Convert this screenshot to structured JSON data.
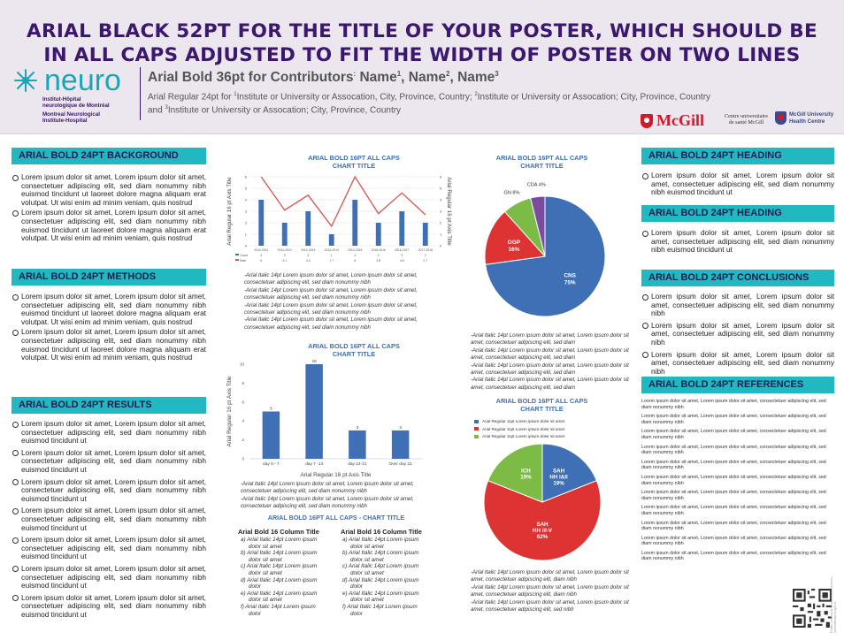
{
  "header": {
    "title_line1": "ARIAL BLACK 52PT FOR THE TITLE OF YOUR POSTER, WHICH SHOULD BE",
    "title_line2": "IN ALL CAPS ADJUSTED TO FIT THE WIDTH OF POSTER ON TWO LINES",
    "contributors_prefix": "Arial Bold 36pt for Contributors",
    "contributors_colon": ":",
    "name1": "Name",
    "name2": "Name",
    "name3": "Name",
    "sup1": "1",
    "sup2": "2",
    "sup3": "3",
    "affil_line1_a": "Arial Regular 24pt for ",
    "affil_line1_b": "Institute or University or Assocation, City, Province, Country; ",
    "affil_line1_c": "Institute or University or Assocation; City, Province, Country",
    "affil_line2_a": "and ",
    "affil_line2_b": "Institute or University or Assocation; City, Province, Country",
    "logo_word": "neuro",
    "logo_sub": [
      "Institut-Hôpital",
      "neurologique de Montréal",
      "Montreal Neurological",
      "Institute-Hospital"
    ],
    "mcgill": "McGill",
    "cu": [
      "Centre universitaire",
      "de santé McGill"
    ],
    "muhc": [
      "McGill University",
      "Health Centre"
    ]
  },
  "left": {
    "background_heading": "ARIAL BOLD 24PT BACKGROUND",
    "background_items": [
      "Lorem ipsum dolor sit amet, Lorem ipsum dolor sit amet, consectetuer adipiscing elit, sed diam nonummy nibh euismod tincidunt ut laoreet dolore magna aliquam erat volutpat. Ut wisi enim ad minim veniam, quis nostrud",
      "Lorem ipsum dolor sit amet, Lorem ipsum dolor sit amet, consectetuer adipiscing elit, sed diam nonummy nibh euismod tincidunt ut laoreet dolore magna aliquam erat volutpat. Ut wisi enim ad minim veniam, quis nostrud"
    ],
    "methods_heading": "ARIAL BOLD 24PT METHODS",
    "methods_items": [
      "Lorem ipsum dolor sit amet, Lorem ipsum dolor sit amet, consectetuer adipiscing elit, sed diam nonummy nibh euismod tincidunt ut laoreet dolore magna aliquam erat volutpat. Ut wisi enim ad minim veniam, quis nostrud",
      "Lorem ipsum dolor sit amet, Lorem ipsum dolor sit amet, consectetuer adipiscing elit, sed diam nonummy nibh euismod tincidunt ut laoreet dolore magna aliquam erat volutpat. Ut wisi enim ad minim veniam, quis nostrud"
    ],
    "results_heading": "ARIAL BOLD 24PT RESULTS",
    "results_items": [
      "Lorem ipsum dolor sit amet, Lorem ipsum dolor sit amet, consectetuer adipiscing elit, sed diam nonummy nibh euismod tincidunt ut",
      "Lorem ipsum dolor sit amet, Lorem ipsum dolor sit amet, consectetuer adipiscing elit, sed diam nonummy nibh euismod tincidunt ut",
      "Lorem ipsum dolor sit amet, Lorem ipsum dolor sit amet, consectetuer adipiscing elit, sed diam nonummy nibh euismod tincidunt ut",
      "Lorem ipsum dolor sit amet, Lorem ipsum dolor sit amet, consectetuer adipiscing elit, sed diam nonummy nibh euismod tincidunt ut",
      "Lorem ipsum dolor sit amet, Lorem ipsum dolor sit amet, consectetuer adipiscing elit, sed diam nonummy nibh euismod tincidunt ut",
      "Lorem ipsum dolor sit amet, Lorem ipsum dolor sit amet, consectetuer adipiscing elit, sed diam nonummy nibh euismod tincidunt ut",
      "Lorem ipsum dolor sit amet, Lorem ipsum dolor sit amet, consectetuer adipiscing elit, sed diam nonummy nibh euismod tincidunt ut"
    ]
  },
  "center": {
    "combo_notes": [
      "-Arial Italic 14pt Lorem ipsum dolor sit amet, Lorem ipsum dolor sit amet, consectetuer adipiscing elit, sed diam nonummy nibh",
      "-Arial Italic 14pt Lorem ipsum dolor sit amet, Lorem ipsum dolor sit amet, consectetuer adipiscing elit, sed diam nonummy nibh",
      "-Arial Italic 14pt Lorem ipsum dolor sit amet, Lorem ipsum dolor sit amet, consectetuer adipiscing elit, sed diam nonummy nibh",
      "-Arial Italic 14pt Lorem ipsum dolor sit amet, Lorem ipsum dolor sit amet, consectetuer adipiscing elit, sed diam nonummy nibh"
    ],
    "bar_notes": [
      "-Arial Italic 14pt Lorem ipsum dolor sit amet, Lorem ipsum dolor sit amet, consectetuer adipiscing elit, sed diam nonummy nibh",
      "-Arial Italic 14pt Lorem ipsum dolor sit amet, Lorem ipsum dolor sit amet, consectetuer adipiscing elit, sed diam nonummy nibh"
    ],
    "table_title": "ARIAL BOLD 16PT ALL CAPS - CHART TITLE",
    "col1_head": "Arial Bold 16 Column Title",
    "col2_head": "Arial Bold 16 Column Title",
    "col1_items": [
      "a) Arial Italic 14pt Lorem ipsum dolor sit amet",
      "b) Arial Italic 14pt Lorem ipsum dolor sit amet",
      "c) Arial Italic 14pt Lorem ipsum dolor sit amet",
      "d) Arial Italic 14pt Lorem ipsum dolor",
      "e) Arial Italic 14pt Lorem ipsum dolor sit amet",
      "f)  Arial Italic 14pt Lorem ipsum dolor"
    ],
    "col2_items": [
      "a) Arial Italic 14pt Lorem ipsum dolor sit amet",
      "b) Arial Italic 14pt Lorem ipsum dolor sit amet",
      "c) Arial Italic 14pt Lorem ipsum dolor sit amet",
      "d) Arial Italic 14pt Lorem ipsum dolor",
      "e) Arial Italic 14pt Lorem ipsum dolor sit amet",
      "f)  Arial Italic 14pt Lorem ipsum dolor"
    ]
  },
  "pies": {
    "pie1_notes": [
      "-Arial Italic 14pt Lorem ipsum dolor sit amet, Lorem ipsum dolor sit amet, consectetuer adipiscing elit, sed diam",
      "-Arial Italic 14pt Lorem ipsum dolor sit amet, Lorem ipsum dolor sit amet, consectetuer adipiscing elit, sed diam",
      "-Arial Italic 14pt Lorem ipsum dolor sit amet, Lorem ipsum dolor sit amet, consectetuer adipiscing elit, sed diam",
      "-Arial Italic 14pt Lorem ipsum dolor sit amet, Lorem ipsum dolor sit amet, consectetuer adipiscing elit, sed diam"
    ],
    "pie2_notes": [
      "-Arial Italic 14pt Lorem ipsum dolor sit amet, Lorem ipsum dolor sit amet, consectetuer adipiscing elit, diam nibh",
      "-Arial Italic 14pt Lorem ipsum dolor sit amet, Lorem ipsum dolor sit amet, consectetuer adipiscing elit, diam nibh",
      "-Arial Italic 14pt Lorem ipsum dolor sit amet, Lorem ipsum dolor sit amet, consectetuer adipiscing elit, sed nibh"
    ]
  },
  "right": {
    "heading1": "ARIAL BOLD 24PT HEADING",
    "heading1_text": "Lorem ipsum dolor sit amet, Lorem ipsum dolor sit amet, consectetuer adipiscing elit, sed diam nonummy nibh euismod tincidunt ut",
    "heading2": "ARIAL BOLD 24PT HEADING",
    "heading2_text": "Lorem ipsum dolor sit amet, Lorem ipsum dolor sit amet, consectetuer adipiscing elit, sed diam nonummy nibh euismod tincidunt ut",
    "conclusions_heading": "ARIAL BOLD 24PT CONCLUSIONS",
    "conclusions": [
      "Lorem ipsum dolor sit amet, Lorem ipsum dolor sit amet, consectetuer adipiscing elit, sed diam nonummy nibh",
      "Lorem ipsum dolor sit amet, Lorem ipsum dolor sit amet, consectetuer adipiscing elit, sed diam nonummy nibh",
      "Lorem ipsum dolor sit amet, Lorem ipsum dolor sit amet, consectetuer adipiscing elit, sed diam nonummy nibh"
    ],
    "references_heading": "ARIAL BOLD 24PT REFERENCES",
    "references": [
      "Lorem ipsum dolor sit amet, Lorem ipsum dolor sit amet, consectetuer adipiscing elit, sed diam nonummy nibh",
      "Lorem ipsum dolor sit amet, Lorem ipsum dolor sit amet, consectetuer adipiscing elit, sed diam nonummy nibh",
      "Lorem ipsum dolor sit amet, Lorem ipsum dolor sit amet, consectetuer adipiscing elit, sed diam nonummy nibh",
      "Lorem ipsum dolor sit amet, Lorem ipsum dolor sit amet, consectetuer adipiscing elit, sed diam nonummy nibh",
      "Lorem ipsum dolor sit amet, Lorem ipsum dolor sit amet, consectetuer adipiscing elit, sed diam nonummy nibh",
      "Lorem ipsum dolor sit amet, Lorem ipsum dolor sit amet, consectetuer adipiscing elit, sed diam nonummy nibh",
      "Lorem ipsum dolor sit amet, Lorem ipsum dolor sit amet, consectetuer adipiscing elit, sed diam nonummy nibh",
      "Lorem ipsum dolor sit amet, Lorem ipsum dolor sit amet, consectetuer adipiscing elit, sed diam nonummy nibh",
      "Lorem ipsum dolor sit amet, Lorem ipsum dolor sit amet, consectetuer adipiscing elit, sed diam nonummy nibh",
      "Lorem ipsum dolor sit amet, Lorem ipsum dolor sit amet, consectetuer adipiscing elit, sed diam nonummy nibh",
      "Lorem ipsum dolor sit amet, Lorem ipsum dolor sit amet, consectetuer adipiscing elit, sed diam nonummy nibh"
    ],
    "vertical_text": "Poster created by Neuro Media Services, neuroaMedia.mcgill.ca"
  },
  "colors": {
    "purple": "#3b1770",
    "teal": "#22b8c2",
    "blue": "#3f6fb5",
    "red": "#d33",
    "green": "#7cbb45",
    "violet": "#7a4ba0"
  },
  "chart_data": [
    {
      "type": "bar",
      "title": "ARIAL BOLD 16PT ALL CAPS CHART TITLE",
      "ylabel": "Arial Regular 16 pt Axis Title",
      "y2label": "Arial Regular 16 pt Axis Title",
      "categories": [
        "2010-2011",
        "2011-2012",
        "2012-2013",
        "2013-2014",
        "2014-2015",
        "2015-2016",
        "2016-2017",
        "2017-2018"
      ],
      "series": [
        {
          "name": "Count",
          "type": "bar",
          "values": [
            4,
            2,
            3,
            1,
            4,
            2,
            3,
            2
          ]
        },
        {
          "name": "Rate",
          "type": "line",
          "values": [
            6,
            3.1,
            4.4,
            1.7,
            6,
            2.8,
            4.6,
            2.7
          ]
        }
      ],
      "table_rows": [
        [
          "6",
          "3.1",
          "4.4",
          "1.7",
          "6",
          "2.8",
          "4.6",
          "2.7"
        ]
      ],
      "ylim": [
        0,
        6
      ]
    },
    {
      "type": "pie",
      "title": "ARIAL BOLD 16PT ALL CAPS CHART TITLE",
      "labels": [
        "CNS",
        "OGP",
        "GN",
        "CDA"
      ],
      "values": [
        75,
        16,
        8,
        4
      ]
    },
    {
      "type": "bar",
      "title": "ARIAL BOLD 16PT ALL CAPS CHART TITLE",
      "ylabel": "Arial Regular 16 pt Axis Title",
      "xlabel": "Arial Regular 16 pt Axis Title",
      "categories": [
        "day 0 - 7",
        "day 7 -14",
        "day 14-21",
        "Over day 21"
      ],
      "values": [
        5,
        10,
        3,
        3
      ],
      "ylim": [
        0,
        10
      ]
    },
    {
      "type": "pie",
      "title": "ARIAL BOLD 16PT ALL CAPS CHART TITLE",
      "labels": [
        "SAH HH I&II",
        "SAH HH III-V",
        "ICH"
      ],
      "values": [
        19,
        62,
        19
      ],
      "legend": [
        "Arial Regular 11pt Lorem ipsum dolor sit amet",
        "Arial Regular 11pt Lorem ipsum dolor sit amet",
        "Arial Regular 11pt Lorem ipsum dolor sit amet"
      ]
    }
  ]
}
